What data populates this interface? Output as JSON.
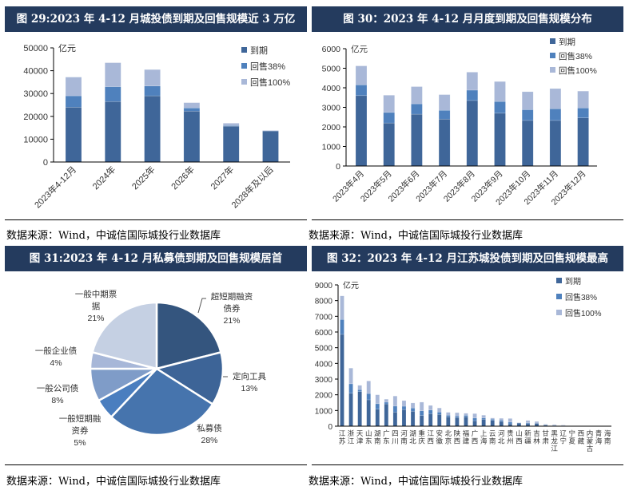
{
  "panels": [
    {
      "title": "图 29:2023 年 4-12 月城投债到期及回售规模近 3 万亿",
      "source": "数据来源：Wind，中诚信国际城投行业数据库"
    },
    {
      "title": "图 30：2023 年 4-12 月月度到期及回售规模分布",
      "source": "数据来源：Wind，中诚信国际城投行业数据库"
    },
    {
      "title": "图 31:2023 年 4-12 月私募债到期及回售规模居首",
      "source": "数据来源：Wind，中诚信国际城投行业数据库"
    },
    {
      "title": "图 32：2023 年 4-12 月江苏城投债到期及回售规模最高",
      "source": "数据来源：Wind，中诚信国际城投行业数据库"
    }
  ],
  "colors": {
    "header": "#243b5e",
    "maturity": "#3f6699",
    "put38": "#4f81bd",
    "put100": "#a9b8d8"
  },
  "chart_data": [
    {
      "type": "bar",
      "stacked": true,
      "unit_label": "亿元",
      "ylim": [
        0,
        50000
      ],
      "yticks": [
        0,
        10000,
        20000,
        30000,
        40000,
        50000
      ],
      "legend_position": "top-right",
      "categories": [
        "2023年4-12月",
        "2024年",
        "2025年",
        "2026年",
        "2027年",
        "2028年及以后"
      ],
      "series": [
        {
          "name": "到期",
          "values": [
            24000,
            26500,
            29000,
            22300,
            15700,
            13600
          ]
        },
        {
          "name": "回售38%",
          "values": [
            5000,
            6500,
            4300,
            1400,
            300,
            100
          ]
        },
        {
          "name": "回售100%",
          "values": [
            8200,
            10500,
            7200,
            2300,
            1000,
            200
          ]
        }
      ]
    },
    {
      "type": "bar",
      "stacked": true,
      "unit_label": "亿元",
      "ylim": [
        0,
        6000
      ],
      "yticks": [
        0,
        1000,
        2000,
        3000,
        4000,
        5000,
        6000
      ],
      "legend_position": "top-right",
      "categories": [
        "2023年4月",
        "2023年5月",
        "2023年6月",
        "2023年7月",
        "2023年8月",
        "2023年9月",
        "2023年10月",
        "2023年11月",
        "2023年12月"
      ],
      "series": [
        {
          "name": "到期",
          "values": [
            3600,
            2200,
            2650,
            2400,
            3350,
            2700,
            2330,
            2330,
            2460
          ]
        },
        {
          "name": "回售38%",
          "values": [
            550,
            540,
            530,
            450,
            530,
            600,
            550,
            600,
            510
          ]
        },
        {
          "name": "回售100%",
          "values": [
            970,
            880,
            880,
            800,
            920,
            1020,
            920,
            1030,
            860
          ]
        }
      ]
    },
    {
      "type": "pie",
      "slices": [
        {
          "label": "超短期融资债券",
          "display": [
            "超短期融资",
            "债券"
          ],
          "value": 21,
          "pct": "21%",
          "color": "#34557e"
        },
        {
          "label": "定向工具",
          "display": [
            "定向工具"
          ],
          "value": 13,
          "pct": "13%",
          "color": "#3d6497"
        },
        {
          "label": "私募债",
          "display": [
            "私募债"
          ],
          "value": 28,
          "pct": "28%",
          "color": "#4674ad"
        },
        {
          "label": "一般短期融资券",
          "display": [
            "一般短期融",
            "资券"
          ],
          "value": 5,
          "pct": "5%",
          "color": "#4a7ebf"
        },
        {
          "label": "一般公司债",
          "display": [
            "一般公司债"
          ],
          "value": 8,
          "pct": "8%",
          "color": "#7f9cc8"
        },
        {
          "label": "一般企业债",
          "display": [
            "一般企业债"
          ],
          "value": 4,
          "pct": "4%",
          "color": "#a7b7d8"
        },
        {
          "label": "一般中期票据",
          "display": [
            "一般中期票",
            "据"
          ],
          "value": 21,
          "pct": "21%",
          "color": "#c5d0e3"
        }
      ]
    },
    {
      "type": "bar",
      "stacked": true,
      "unit_label": "亿元",
      "ylim": [
        0,
        9000
      ],
      "yticks": [
        0,
        1000,
        2000,
        3000,
        4000,
        5000,
        6000,
        7000,
        8000,
        9000
      ],
      "legend_position": "top-right",
      "categories": [
        "江苏",
        "浙江",
        "天津",
        "山东",
        "湖南",
        "广东",
        "四川",
        "河南",
        "湖北",
        "重庆",
        "江西",
        "安徽",
        "北京",
        "陕西",
        "福建",
        "广西",
        "上海",
        "云南",
        "河北",
        "贵州",
        "山西",
        "新疆",
        "吉林",
        "甘肃",
        "黑龙江",
        "辽宁",
        "宁夏",
        "西藏",
        "内蒙古",
        "青海",
        "海南"
      ],
      "series": [
        {
          "name": "到期",
          "values": [
            5850,
            2100,
            2200,
            1680,
            1080,
            1420,
            900,
            1060,
            950,
            680,
            800,
            750,
            600,
            550,
            600,
            350,
            430,
            370,
            300,
            150,
            200,
            160,
            180,
            70,
            30,
            20,
            10,
            5,
            5,
            5,
            3
          ]
        },
        {
          "name": "回售38%",
          "values": [
            950,
            600,
            130,
            400,
            350,
            110,
            380,
            210,
            210,
            300,
            230,
            150,
            100,
            100,
            90,
            170,
            90,
            80,
            80,
            110,
            10,
            60,
            20,
            20,
            20,
            20,
            5,
            3,
            3,
            3,
            2
          ]
        },
        {
          "name": "回售100%",
          "values": [
            1500,
            1000,
            270,
            800,
            570,
            190,
            640,
            360,
            320,
            550,
            290,
            260,
            180,
            210,
            130,
            280,
            180,
            70,
            120,
            230,
            20,
            140,
            100,
            40,
            50,
            30,
            10,
            4,
            4,
            2,
            3
          ]
        }
      ]
    }
  ]
}
